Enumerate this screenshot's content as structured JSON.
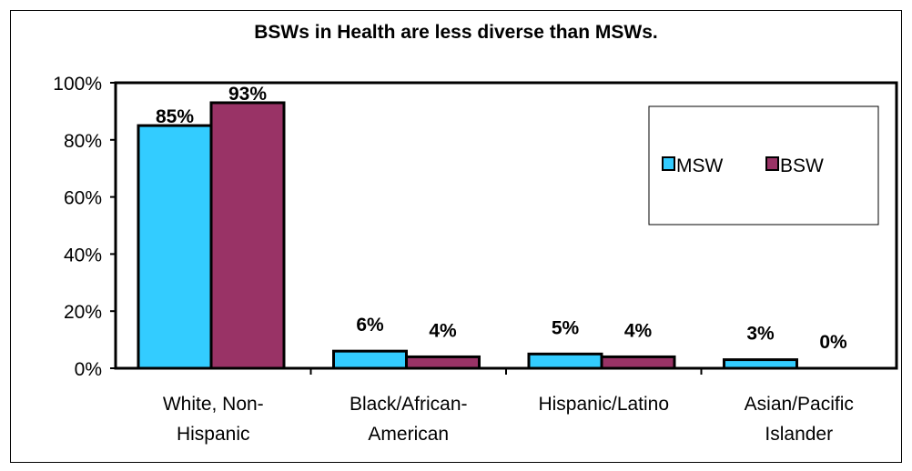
{
  "chart_data": {
    "type": "bar",
    "title": "BSWs in  Health are less diverse than MSWs.",
    "xlabel": "",
    "ylabel": "",
    "ylim": [
      0,
      100
    ],
    "yticks": [
      "0%",
      "20%",
      "40%",
      "60%",
      "80%",
      "100%"
    ],
    "categories": [
      [
        "White, Non-",
        "Hispanic"
      ],
      [
        "Black/African-",
        "American"
      ],
      [
        "Hispanic/Latino"
      ],
      [
        "Asian/Pacific",
        "Islander"
      ]
    ],
    "series": [
      {
        "name": "MSW",
        "values": [
          85,
          6,
          5,
          3
        ],
        "labels": [
          "85%",
          "6%",
          "5%",
          "3%"
        ],
        "color": "#33ccff"
      },
      {
        "name": "BSW",
        "values": [
          93,
          4,
          4,
          0
        ],
        "labels": [
          "93%",
          "4%",
          "4%",
          "0%"
        ],
        "color": "#993366"
      }
    ],
    "legend": "right",
    "grid": false
  }
}
